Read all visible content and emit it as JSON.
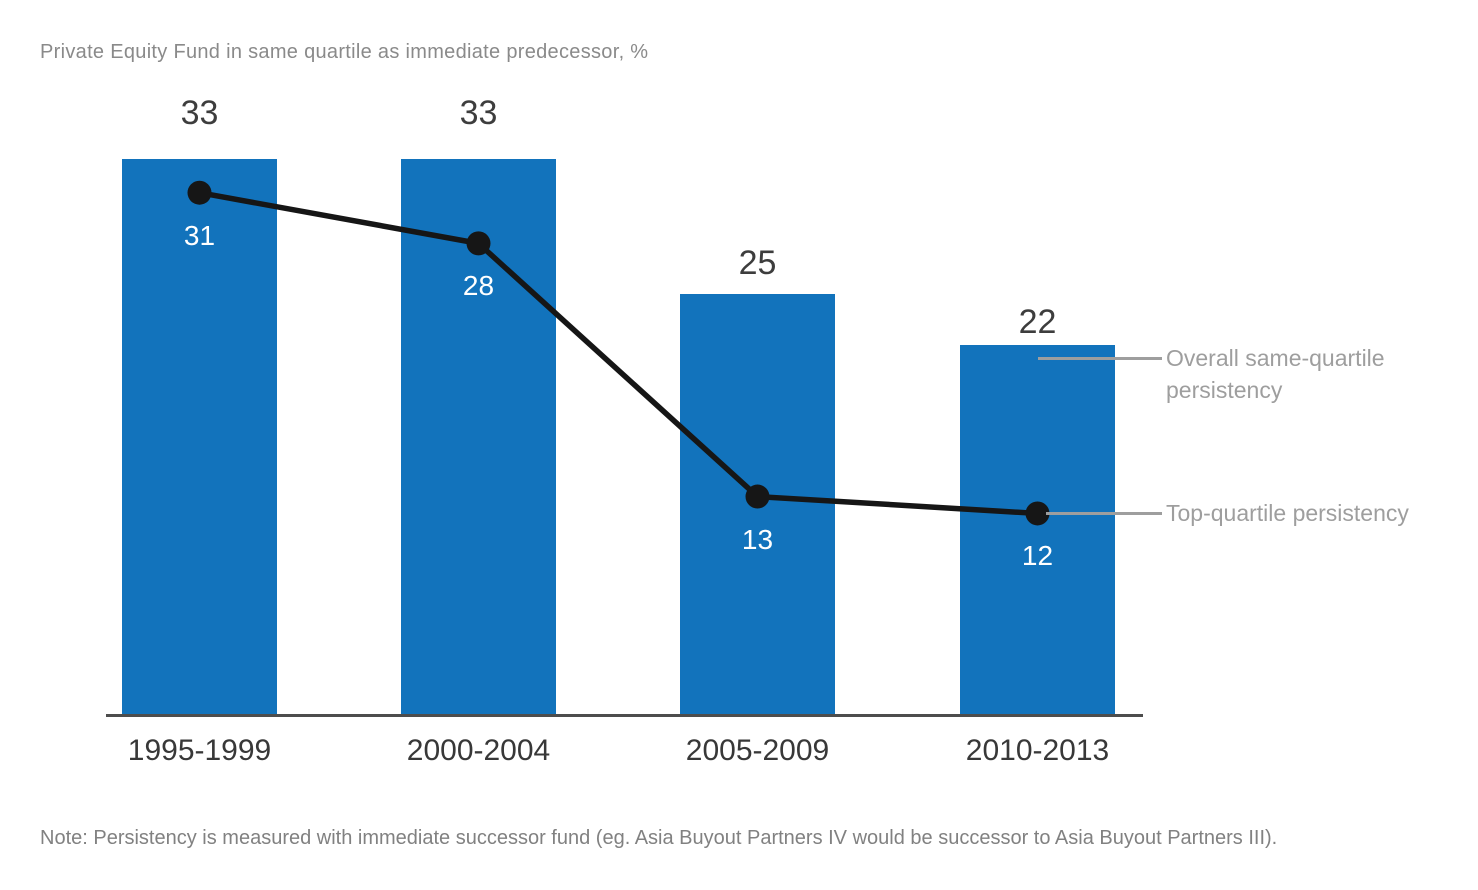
{
  "chart_data": {
    "type": "bar+line",
    "categories": [
      "1995-1999",
      "2000-2004",
      "2005-2009",
      "2010-2013"
    ],
    "series": [
      {
        "name": "Overall same-quartile persistency",
        "type": "bar",
        "values": [
          33,
          33,
          25,
          22
        ],
        "color": "#1273BC",
        "value_label_color": "#3d3d3d"
      },
      {
        "name": "Top-quartile persistency",
        "type": "line",
        "values": [
          31,
          28,
          13,
          12
        ],
        "color": "#161616",
        "value_label_color": "#ffffff"
      }
    ],
    "title": "Private Equity Fund in same quartile as immediate predecessor, %",
    "xlabel": "",
    "ylabel": "",
    "ylim": [
      0,
      38
    ],
    "grid": false,
    "legend_position": "right annotations with gray leader lines",
    "annotations": {
      "overall": "Overall same-quartile persistency",
      "top_quartile": "Top-quartile persistency"
    },
    "note": "Note: Persistency is measured with immediate successor fund (eg. Asia Buyout Partners IV would be successor to Asia Buyout Partners III).",
    "colors": {
      "bar_blue": "#1273BC",
      "line_black": "#161616",
      "axis_gray": "#4d4d4d",
      "annotation_gray": "#9e9e9e",
      "title_gray": "#8a8a8a",
      "note_gray": "#818181"
    }
  }
}
